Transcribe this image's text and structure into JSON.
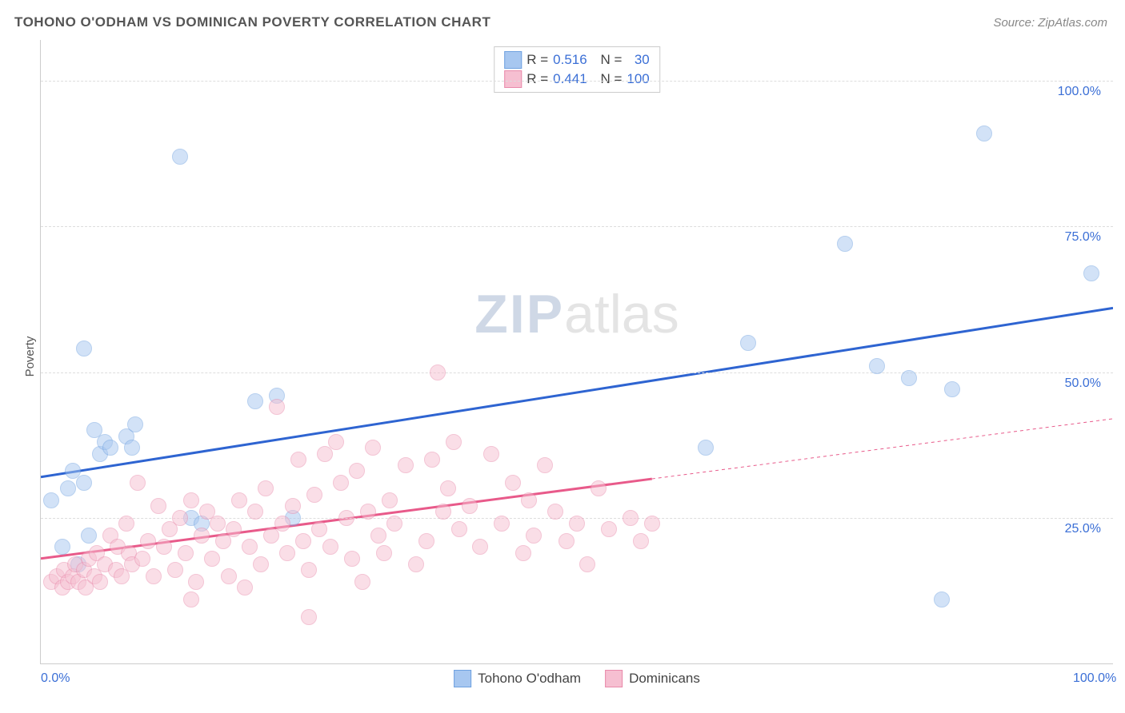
{
  "title": "TOHONO O'ODHAM VS DOMINICAN POVERTY CORRELATION CHART",
  "source": "Source: ZipAtlas.com",
  "ylabel": "Poverty",
  "watermark": {
    "part1": "ZIP",
    "part2": "atlas"
  },
  "chart": {
    "type": "scatter",
    "background_color": "#ffffff",
    "grid_color": "#dddddd",
    "axis_color": "#cccccc",
    "tick_color": "#3b6fd6",
    "tick_fontsize": 16,
    "title_fontsize": 17,
    "xlim": [
      0,
      100
    ],
    "ylim": [
      0,
      107
    ],
    "yticks": [
      25,
      50,
      75,
      100
    ],
    "ytick_labels": [
      "25.0%",
      "50.0%",
      "75.0%",
      "100.0%"
    ],
    "xticks": [
      0,
      100
    ],
    "xtick_labels": [
      "0.0%",
      "100.0%"
    ],
    "marker_radius": 9,
    "marker_opacity": 0.5,
    "series": [
      {
        "name": "Tohono O'odham",
        "fill_color": "#a7c7f0",
        "stroke_color": "#6fa1e0",
        "line_color": "#2e64d1",
        "line_width": 3,
        "r": "0.516",
        "n": "30",
        "trend": {
          "x1": 0,
          "y1": 32,
          "x2": 100,
          "y2": 61,
          "dashed_from": null
        },
        "points": [
          [
            1,
            28
          ],
          [
            2,
            20
          ],
          [
            2.5,
            30
          ],
          [
            3,
            33
          ],
          [
            3.5,
            17
          ],
          [
            4,
            31
          ],
          [
            4.5,
            22
          ],
          [
            5,
            40
          ],
          [
            5.5,
            36
          ],
          [
            6,
            38
          ],
          [
            6.5,
            37
          ],
          [
            8,
            39
          ],
          [
            8.5,
            37
          ],
          [
            8.8,
            41
          ],
          [
            4,
            54
          ],
          [
            13,
            87
          ],
          [
            14,
            25
          ],
          [
            15,
            24
          ],
          [
            20,
            45
          ],
          [
            22,
            46
          ],
          [
            23.5,
            25
          ],
          [
            62,
            37
          ],
          [
            66,
            55
          ],
          [
            75,
            72
          ],
          [
            78,
            51
          ],
          [
            81,
            49
          ],
          [
            84,
            11
          ],
          [
            85,
            47
          ],
          [
            88,
            91
          ],
          [
            98,
            67
          ]
        ]
      },
      {
        "name": "Dominicans",
        "fill_color": "#f6bfd1",
        "stroke_color": "#e98aab",
        "line_color": "#e85a8a",
        "line_width": 3,
        "r": "0.441",
        "n": "100",
        "trend": {
          "x1": 0,
          "y1": 18,
          "x2": 100,
          "y2": 42,
          "dashed_from": 57
        },
        "points": [
          [
            1,
            14
          ],
          [
            1.5,
            15
          ],
          [
            2,
            13
          ],
          [
            2.2,
            16
          ],
          [
            2.5,
            14
          ],
          [
            3,
            15
          ],
          [
            3.2,
            17
          ],
          [
            3.5,
            14
          ],
          [
            4,
            16
          ],
          [
            4.2,
            13
          ],
          [
            4.5,
            18
          ],
          [
            5,
            15
          ],
          [
            5.2,
            19
          ],
          [
            5.5,
            14
          ],
          [
            6,
            17
          ],
          [
            6.5,
            22
          ],
          [
            7,
            16
          ],
          [
            7.2,
            20
          ],
          [
            7.5,
            15
          ],
          [
            8,
            24
          ],
          [
            8.2,
            19
          ],
          [
            8.5,
            17
          ],
          [
            9,
            31
          ],
          [
            9.5,
            18
          ],
          [
            10,
            21
          ],
          [
            10.5,
            15
          ],
          [
            11,
            27
          ],
          [
            11.5,
            20
          ],
          [
            12,
            23
          ],
          [
            12.5,
            16
          ],
          [
            13,
            25
          ],
          [
            13.5,
            19
          ],
          [
            14,
            28
          ],
          [
            14.5,
            14
          ],
          [
            15,
            22
          ],
          [
            15.5,
            26
          ],
          [
            16,
            18
          ],
          [
            16.5,
            24
          ],
          [
            17,
            21
          ],
          [
            17.5,
            15
          ],
          [
            18,
            23
          ],
          [
            18.5,
            28
          ],
          [
            19,
            13
          ],
          [
            19.5,
            20
          ],
          [
            20,
            26
          ],
          [
            20.5,
            17
          ],
          [
            21,
            30
          ],
          [
            21.5,
            22
          ],
          [
            22,
            44
          ],
          [
            22.5,
            24
          ],
          [
            23,
            19
          ],
          [
            23.5,
            27
          ],
          [
            24,
            35
          ],
          [
            24.5,
            21
          ],
          [
            25,
            16
          ],
          [
            25.5,
            29
          ],
          [
            26,
            23
          ],
          [
            26.5,
            36
          ],
          [
            27,
            20
          ],
          [
            27.5,
            38
          ],
          [
            28,
            31
          ],
          [
            28.5,
            25
          ],
          [
            29,
            18
          ],
          [
            29.5,
            33
          ],
          [
            30,
            14
          ],
          [
            30.5,
            26
          ],
          [
            31,
            37
          ],
          [
            31.5,
            22
          ],
          [
            32,
            19
          ],
          [
            32.5,
            28
          ],
          [
            33,
            24
          ],
          [
            34,
            34
          ],
          [
            35,
            17
          ],
          [
            36,
            21
          ],
          [
            36.5,
            35
          ],
          [
            37,
            50
          ],
          [
            37.5,
            26
          ],
          [
            38,
            30
          ],
          [
            38.5,
            38
          ],
          [
            39,
            23
          ],
          [
            40,
            27
          ],
          [
            41,
            20
          ],
          [
            42,
            36
          ],
          [
            43,
            24
          ],
          [
            44,
            31
          ],
          [
            45,
            19
          ],
          [
            45.5,
            28
          ],
          [
            46,
            22
          ],
          [
            47,
            34
          ],
          [
            48,
            26
          ],
          [
            49,
            21
          ],
          [
            50,
            24
          ],
          [
            51,
            17
          ],
          [
            52,
            30
          ],
          [
            53,
            23
          ],
          [
            55,
            25
          ],
          [
            56,
            21
          ],
          [
            57,
            24
          ],
          [
            25,
            8
          ],
          [
            14,
            11
          ]
        ]
      }
    ],
    "legend_top": {
      "r_label": "R =",
      "n_label": "N ="
    },
    "legend_bottom": {
      "items": [
        "Tohono O'odham",
        "Dominicans"
      ]
    }
  }
}
